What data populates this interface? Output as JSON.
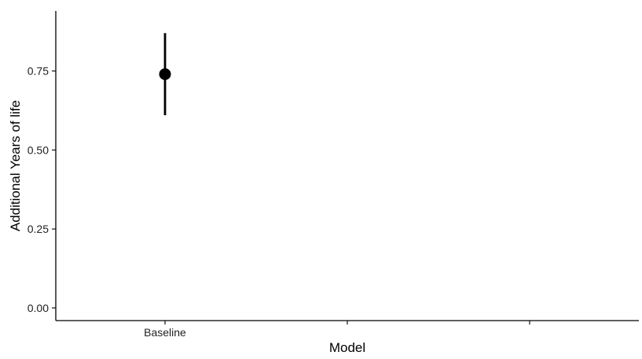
{
  "chart_data": {
    "type": "scatter",
    "xlabel": "Model",
    "ylabel": "Additional Years of life",
    "categories": [
      "Baseline",
      "",
      ""
    ],
    "ylim": [
      -0.04,
      0.94
    ],
    "yticks": [
      0.0,
      0.25,
      0.5,
      0.75
    ],
    "ytick_labels": [
      "0.00",
      "0.25",
      "0.50",
      "0.75"
    ],
    "grid": false,
    "legend": "none",
    "series": [
      {
        "points": [
          {
            "category": "Baseline",
            "y": 0.74,
            "ymin": 0.61,
            "ymax": 0.87
          }
        ],
        "color": "#000000"
      }
    ]
  }
}
